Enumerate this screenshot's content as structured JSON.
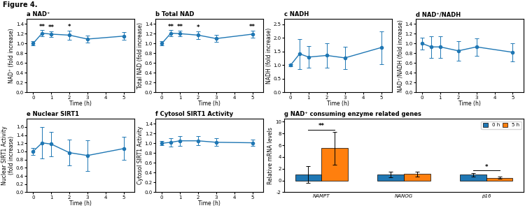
{
  "title": "Figure 4.",
  "chart_data": [
    {
      "type": "line",
      "title": "a NAD⁺",
      "x_label": "Time (h)",
      "y_label": "NAD⁺ (fold increase)",
      "x": [
        0,
        0.5,
        1,
        2,
        3,
        5
      ],
      "values": [
        1.0,
        1.21,
        1.19,
        1.17,
        1.09,
        1.15
      ],
      "errors": [
        0.04,
        0.06,
        0.06,
        0.09,
        0.07,
        0.08
      ],
      "marker": "o",
      "xlim": [
        -0.35,
        5.6
      ],
      "xticks": [
        0,
        1,
        2,
        3,
        4,
        5
      ],
      "ylim": [
        0.0,
        1.5
      ],
      "yticks": [
        0.0,
        0.2,
        0.4,
        0.6,
        0.8,
        1.0,
        1.2,
        1.4
      ],
      "annotations": [
        {
          "x": 0.5,
          "text": "**"
        },
        {
          "x": 1,
          "text": "**"
        },
        {
          "x": 2,
          "text": "*"
        }
      ]
    },
    {
      "type": "line",
      "title": "b Total NAD",
      "x_label": "Time (h)",
      "y_label": "Total NAD (fold increase)",
      "x": [
        0,
        0.5,
        1,
        2,
        3,
        5
      ],
      "values": [
        1.0,
        1.21,
        1.2,
        1.17,
        1.1,
        1.19
      ],
      "errors": [
        0.04,
        0.06,
        0.06,
        0.08,
        0.07,
        0.07
      ],
      "marker": "o",
      "xlim": [
        -0.35,
        5.6
      ],
      "xticks": [
        0,
        1,
        2,
        3,
        4,
        5
      ],
      "ylim": [
        0.0,
        1.5
      ],
      "yticks": [
        0.0,
        0.2,
        0.4,
        0.6,
        0.8,
        1.0,
        1.2,
        1.4
      ],
      "annotations": [
        {
          "x": 0.5,
          "text": "**"
        },
        {
          "x": 1,
          "text": "**"
        },
        {
          "x": 2,
          "text": "*"
        },
        {
          "x": 5,
          "text": "**"
        }
      ]
    },
    {
      "type": "line",
      "title": "c NADH",
      "x_label": "Time (h)",
      "y_label": "NADH (fold increase)",
      "x": [
        0,
        0.5,
        1,
        2,
        3,
        5
      ],
      "values": [
        1.0,
        1.42,
        1.3,
        1.36,
        1.27,
        1.65
      ],
      "errors": [
        0.05,
        0.55,
        0.4,
        0.45,
        0.42,
        0.6
      ],
      "marker": "o",
      "xlim": [
        -0.35,
        5.6
      ],
      "xticks": [
        0,
        1,
        2,
        3,
        4,
        5
      ],
      "ylim": [
        0.0,
        2.7
      ],
      "yticks": [
        0.0,
        0.5,
        1.0,
        1.5,
        2.0,
        2.5
      ]
    },
    {
      "type": "line",
      "title": "d NAD⁺/NADH",
      "x_label": "Time (h)",
      "y_label": "NAD⁺/NADH (fold increase)",
      "x": [
        0,
        0.5,
        1,
        2,
        3,
        5
      ],
      "values": [
        1.0,
        0.93,
        0.93,
        0.85,
        0.93,
        0.82
      ],
      "errors": [
        0.12,
        0.22,
        0.22,
        0.2,
        0.18,
        0.18
      ],
      "marker": "o",
      "xlim": [
        -0.35,
        5.6
      ],
      "xticks": [
        0,
        1,
        2,
        3,
        4,
        5
      ],
      "ylim": [
        0.0,
        1.5
      ],
      "yticks": [
        0.0,
        0.2,
        0.4,
        0.6,
        0.8,
        1.0,
        1.2,
        1.4
      ]
    },
    {
      "type": "line",
      "title": "e Nuclear SIRT1",
      "x_label": "Time (h)",
      "y_label": "Nuclear SIRT1 Activity\n(fold increase)",
      "x": [
        0,
        0.5,
        1,
        2,
        3,
        5
      ],
      "values": [
        1.0,
        1.21,
        1.18,
        0.97,
        0.9,
        1.07
      ],
      "errors": [
        0.08,
        0.38,
        0.3,
        0.32,
        0.38,
        0.28
      ],
      "marker": "o",
      "xlim": [
        -0.35,
        5.6
      ],
      "xticks": [
        0,
        1,
        2,
        3,
        4,
        5
      ],
      "ylim": [
        0.0,
        1.8
      ],
      "yticks": [
        0.0,
        0.2,
        0.4,
        0.6,
        0.8,
        1.0,
        1.2,
        1.4,
        1.6
      ]
    },
    {
      "type": "line",
      "title": "f Cytosol SIRT1 Activity",
      "x_label": "Time (h)",
      "y_label": "Cytosol SIRT1 Activity",
      "x": [
        0,
        0.5,
        1,
        2,
        3,
        5
      ],
      "values": [
        1.0,
        1.02,
        1.05,
        1.05,
        1.02,
        1.01
      ],
      "errors": [
        0.04,
        0.09,
        0.1,
        0.09,
        0.08,
        0.07
      ],
      "marker": "o",
      "xlim": [
        -0.35,
        5.6
      ],
      "xticks": [
        0,
        1,
        2,
        3,
        4,
        5
      ],
      "ylim": [
        0.0,
        1.5
      ],
      "yticks": [
        0.0,
        0.2,
        0.4,
        0.6,
        0.8,
        1.0,
        1.2,
        1.4
      ]
    },
    {
      "type": "bar",
      "title": "g NAD⁺ consuming enzyme related genes",
      "y_label": "Relative mRNA levels",
      "categories": [
        "NAMPT",
        "NANOG",
        "p16"
      ],
      "series": [
        {
          "name": "0 h",
          "values": [
            1.0,
            1.0,
            1.0
          ],
          "errors": [
            1.4,
            0.45,
            0.3
          ]
        },
        {
          "name": "5 h",
          "values": [
            5.5,
            1.1,
            0.45
          ],
          "errors": [
            2.8,
            0.45,
            0.2
          ]
        }
      ],
      "ylim": [
        -2.0,
        10.5
      ],
      "yticks": [
        -2,
        0,
        2,
        4,
        6,
        8,
        10
      ],
      "legend": "upper right",
      "annotations": [
        {
          "category": "NAMPT",
          "text": "**"
        },
        {
          "category": "p16",
          "text": "*"
        }
      ]
    }
  ]
}
